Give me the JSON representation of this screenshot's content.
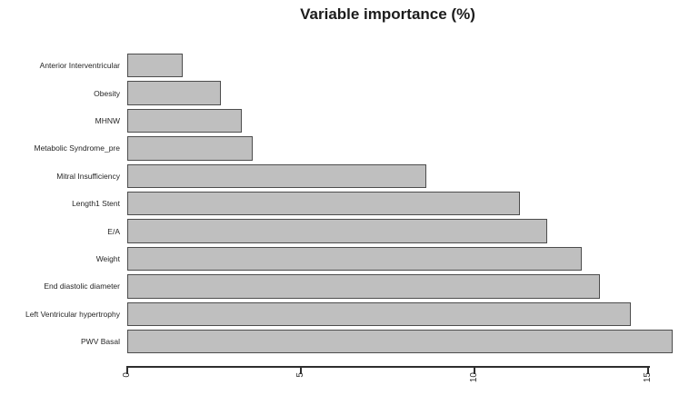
{
  "title": "Variable importance (%)",
  "chart_data": {
    "type": "bar",
    "orientation": "horizontal",
    "title": "Variable importance (%)",
    "categories": [
      "Anterior Interventricular",
      "Obesity",
      "MHNW",
      "Metabolic Syndrome_pre",
      "Mitral Insufficiency",
      "Length1 Stent",
      "E/A",
      "Weight",
      "End diastolic diameter",
      "Left Ventricular hypertrophy",
      "PWV Basal"
    ],
    "values": [
      1.6,
      2.7,
      3.3,
      3.6,
      8.6,
      11.3,
      12.1,
      13.1,
      13.6,
      14.5,
      15.7
    ],
    "xlabel": "",
    "ylabel": "",
    "xlim": [
      0,
      15
    ],
    "x_ticks": [
      0,
      5,
      10,
      15
    ],
    "x_tick_labels": [
      "0",
      "5",
      "10",
      "15"
    ],
    "x_tick_label_rotation_deg": -90,
    "grid": false,
    "legend": false,
    "colors": {
      "bar_fill": "#bfbfbf",
      "bar_border": "#4d4d4d",
      "axis": "#2e2e2e",
      "text": "#262626",
      "title": "#1c1c1c",
      "background": "#ffffff"
    }
  }
}
